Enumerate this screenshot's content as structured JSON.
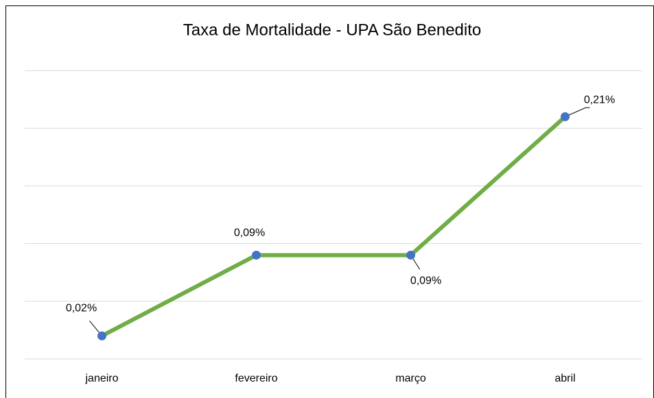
{
  "chart_data": {
    "type": "line",
    "title": "Taxa de Mortalidade - UPA São Benedito",
    "categories": [
      "janeiro",
      "fevereiro",
      "março",
      "abril"
    ],
    "series": [
      {
        "name": "Taxa de Mortalidade",
        "color": "#70ad47",
        "marker_color": "#4472c4",
        "values": [
          0.02,
          0.09,
          0.09,
          0.21
        ],
        "value_labels": [
          "0,02%",
          "0,09%",
          "0,09%",
          "0,21%"
        ]
      }
    ],
    "ylim": [
      0,
      0.25
    ],
    "yticks": [
      0,
      0.05,
      0.1,
      0.15,
      0.2,
      0.25
    ],
    "grid": true
  }
}
